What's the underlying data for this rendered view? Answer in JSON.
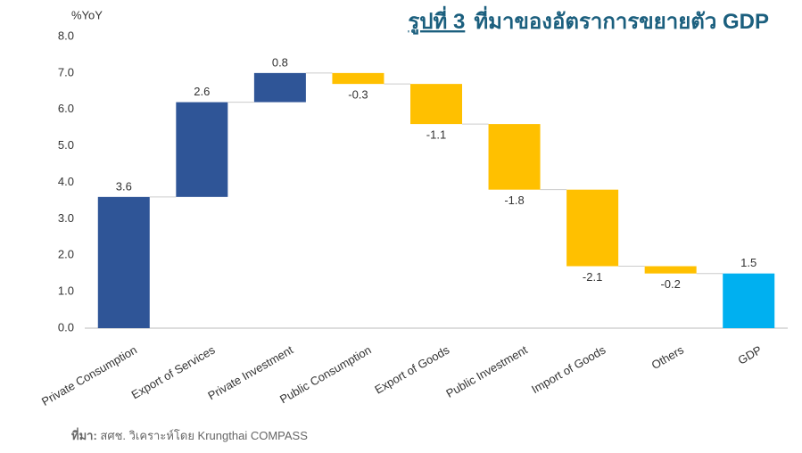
{
  "chart_data": {
    "type": "waterfall",
    "figure_label": "รูปที่ 3",
    "title": "ที่มาของอัตราการขยายตัว GDP",
    "y_axis_label": "%YoY",
    "categories": [
      "Private Consumption",
      "Export of Services",
      "Private Investment",
      "Public Consumption",
      "Export of Goods",
      "Public Investment",
      "Import of Goods",
      "Others",
      "GDP"
    ],
    "values": [
      3.6,
      2.6,
      0.8,
      -0.3,
      -1.1,
      -1.8,
      -2.1,
      -0.2,
      1.5
    ],
    "measure": [
      "relative",
      "relative",
      "relative",
      "relative",
      "relative",
      "relative",
      "relative",
      "relative",
      "total"
    ],
    "colors": {
      "increase": "#2f5597",
      "decrease": "#ffc000",
      "total": "#00b0f0"
    },
    "ylim": [
      0,
      8
    ],
    "yticks": [
      {
        "value": 0,
        "label": "0.0"
      },
      {
        "value": 1,
        "label": "1.0"
      },
      {
        "value": 2,
        "label": "2.0"
      },
      {
        "value": 3,
        "label": "3.0"
      },
      {
        "value": 4,
        "label": "4.0"
      },
      {
        "value": 5,
        "label": "5.0"
      },
      {
        "value": 6,
        "label": "6.0"
      },
      {
        "value": 7,
        "label": "7.0"
      },
      {
        "value": 8,
        "label": "8.0"
      }
    ],
    "grid": false,
    "source_label": "ที่มา:",
    "source": " สศช. วิเคราะห์โดย Krungthai COMPASS"
  }
}
